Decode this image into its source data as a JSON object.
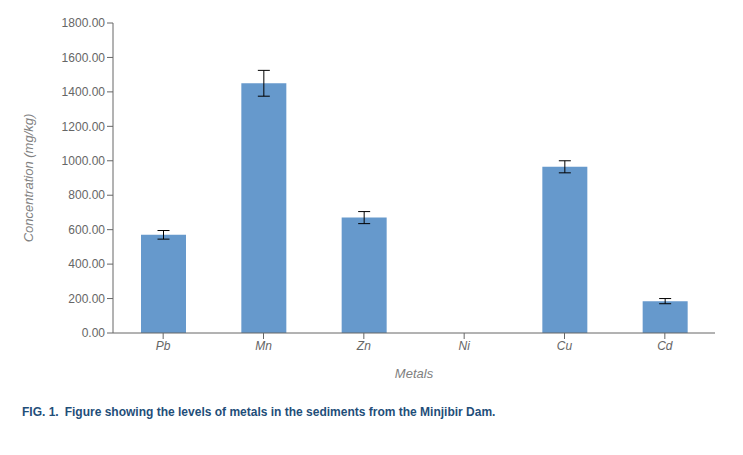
{
  "chart_data": {
    "type": "bar",
    "categories": [
      "Pb",
      "Mn",
      "Zn",
      "Ni",
      "Cu",
      "Cd"
    ],
    "values": [
      570,
      1450,
      670,
      0,
      965,
      185
    ],
    "errors": [
      25,
      75,
      35,
      0,
      35,
      15
    ],
    "color": "#6699cc",
    "ylim": [
      0,
      1800
    ],
    "yticks": [
      {
        "value": 0,
        "label": "0.00"
      },
      {
        "value": 200,
        "label": "200.00"
      },
      {
        "value": 400,
        "label": "400.00"
      },
      {
        "value": 600,
        "label": "600.00"
      },
      {
        "value": 800,
        "label": "800.00"
      },
      {
        "value": 1000,
        "label": "1000.00"
      },
      {
        "value": 1200,
        "label": "1200.00"
      },
      {
        "value": 1400,
        "label": "1400.00"
      },
      {
        "value": 1600,
        "label": "1600.00"
      },
      {
        "value": 1800,
        "label": "1800.00"
      }
    ],
    "xlabel": "Metals",
    "ylabel": "Concentration (mg/kg)",
    "grid": false,
    "annotations": [
      {
        "text": "FIG. 1.",
        "color": "#1f4e79"
      },
      {
        "text": "Figure showing the levels of metals in the sediments from the Minjibir Dam.",
        "color": "#1f4e79"
      }
    ]
  }
}
